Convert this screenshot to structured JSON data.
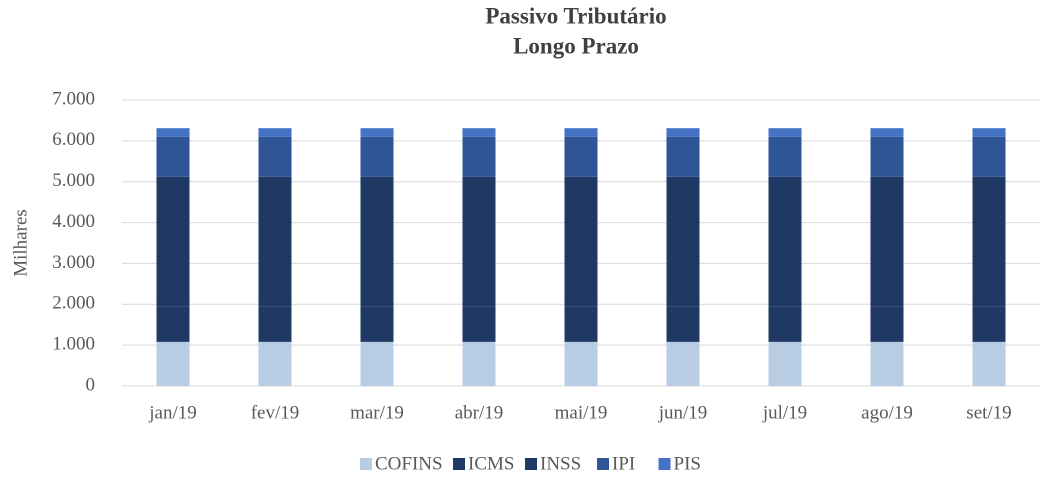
{
  "chart_data": {
    "type": "bar",
    "stacked": true,
    "title": [
      "Passivo Tributário",
      "Longo Prazo"
    ],
    "y_label": "Milhares",
    "categories": [
      "jan/19",
      "fev/19",
      "mar/19",
      "abr/19",
      "mai/19",
      "jun/19",
      "jul/19",
      "ago/19",
      "set/19"
    ],
    "series": [
      {
        "name": "COFINS",
        "color": "#b8cce4",
        "values": [
          1080,
          1080,
          1080,
          1080,
          1080,
          1080,
          1080,
          1080,
          1080
        ]
      },
      {
        "name": "ICMS",
        "color": "#1f3864",
        "values": [
          870,
          870,
          870,
          870,
          870,
          870,
          870,
          870,
          870
        ]
      },
      {
        "name": "INSS",
        "color": "#203864",
        "values": [
          3170,
          3170,
          3170,
          3170,
          3170,
          3170,
          3170,
          3170,
          3170
        ]
      },
      {
        "name": "IPI",
        "color": "#2f5597",
        "values": [
          980,
          980,
          980,
          980,
          980,
          980,
          980,
          980,
          980
        ]
      },
      {
        "name": "PIS",
        "color": "#4472c4",
        "values": [
          210,
          210,
          210,
          210,
          210,
          210,
          210,
          210,
          210
        ]
      }
    ],
    "ylim": [
      0,
      7000
    ],
    "yticks": [
      0,
      {
        "value": 1000,
        "label": "1.000"
      },
      {
        "value": 2000,
        "label": "2.000"
      },
      {
        "value": 3000,
        "label": "3.000"
      },
      {
        "value": 4000,
        "label": "4.000"
      },
      {
        "value": 5000,
        "label": "5.000"
      },
      {
        "value": 6000,
        "label": "6.000"
      },
      {
        "value": 7000,
        "label": "7.000"
      }
    ],
    "grid": true,
    "legend": "bottom"
  }
}
